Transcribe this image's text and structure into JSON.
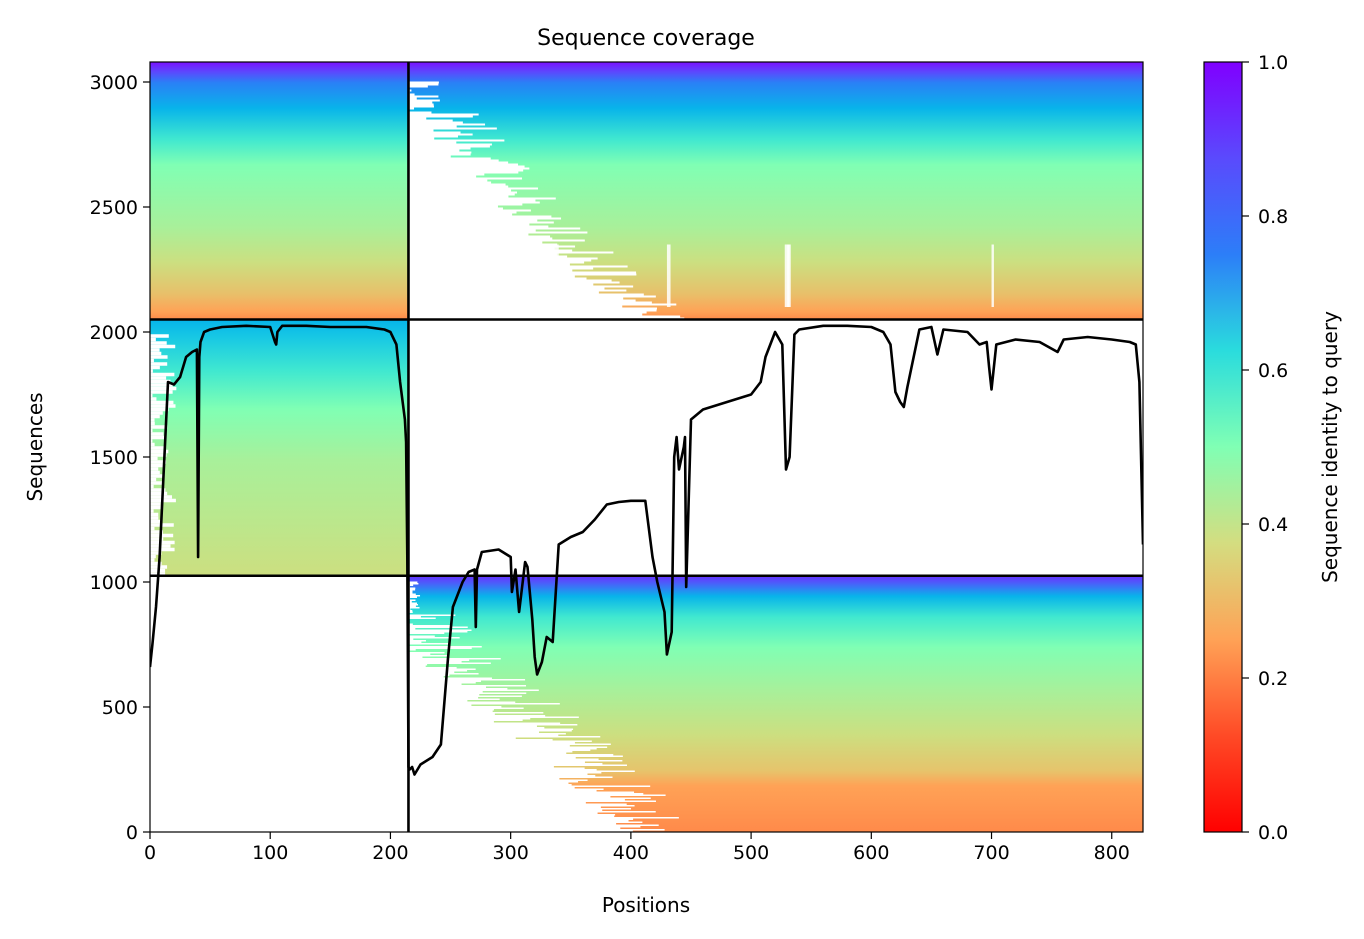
{
  "chart_data": {
    "type": "heatmap",
    "title": "Sequence coverage",
    "xlabel": "Positions",
    "ylabel": "Sequences",
    "xlim": [
      0,
      826
    ],
    "ylim": [
      0,
      3080
    ],
    "xticks": [
      0,
      100,
      200,
      300,
      400,
      500,
      600,
      700,
      800
    ],
    "yticks": [
      0,
      500,
      1000,
      1500,
      2000,
      2500,
      3000
    ],
    "colorbar": {
      "label": "Sequence identity to query",
      "range": [
        0.0,
        1.0
      ],
      "ticks": [
        "0.0",
        "0.2",
        "0.4",
        "0.6",
        "0.8",
        "1.0"
      ],
      "colormap": "rainbow"
    },
    "segment_boundaries_x": [
      215
    ],
    "block_boundaries_y": [
      1025,
      2050
    ],
    "blocks": [
      {
        "x_range": [
          0,
          215
        ],
        "y_range": [
          2050,
          3080
        ],
        "identity_bottom": 0.2,
        "identity_top": 1.0
      },
      {
        "x_range": [
          215,
          826
        ],
        "y_range": [
          2050,
          3080
        ],
        "identity_bottom": 0.2,
        "identity_top": 1.0
      },
      {
        "x_range": [
          0,
          215
        ],
        "y_range": [
          1025,
          2050
        ],
        "identity_bottom": 0.4,
        "identity_top": 0.75
      },
      {
        "x_range": [
          215,
          826
        ],
        "y_range": [
          0,
          1025
        ],
        "identity_bottom": 0.22,
        "identity_top": 1.0
      }
    ],
    "coverage_line": {
      "color": "#000000",
      "x": [
        0,
        2,
        5,
        8,
        12,
        15,
        20,
        25,
        30,
        35,
        39,
        40,
        41,
        42,
        45,
        50,
        60,
        80,
        100,
        104,
        105,
        106,
        110,
        130,
        150,
        180,
        195,
        200,
        205,
        208,
        212,
        213,
        214,
        215,
        216,
        218,
        220,
        225,
        235,
        242,
        248,
        252,
        260,
        265,
        270,
        271,
        272,
        276,
        290,
        300,
        301,
        304,
        307,
        312,
        314,
        318,
        320,
        322,
        326,
        330,
        335,
        340,
        350,
        360,
        370,
        380,
        390,
        400,
        412,
        418,
        422,
        428,
        430,
        434,
        436,
        438,
        440,
        444,
        445,
        446,
        450,
        460,
        480,
        500,
        508,
        512,
        520,
        526,
        529,
        532,
        536,
        540,
        560,
        580,
        600,
        610,
        616,
        620,
        624,
        627,
        630,
        640,
        650,
        655,
        660,
        680,
        690,
        696,
        698,
        700,
        704,
        720,
        740,
        755,
        760,
        780,
        800,
        815,
        820,
        823,
        826
      ],
      "y": [
        660,
        750,
        900,
        1100,
        1500,
        1800,
        1790,
        1820,
        1900,
        1920,
        1930,
        1100,
        1900,
        1960,
        2000,
        2010,
        2020,
        2025,
        2020,
        1960,
        1950,
        2000,
        2025,
        2025,
        2020,
        2020,
        2010,
        2000,
        1950,
        1800,
        1650,
        1560,
        1100,
        260,
        250,
        260,
        230,
        270,
        300,
        350,
        700,
        900,
        1000,
        1040,
        1050,
        820,
        1050,
        1120,
        1130,
        1100,
        960,
        1050,
        880,
        1080,
        1060,
        850,
        700,
        630,
        680,
        780,
        760,
        1150,
        1180,
        1200,
        1250,
        1310,
        1320,
        1325,
        1325,
        1100,
        1000,
        880,
        710,
        800,
        1500,
        1580,
        1450,
        1540,
        1580,
        980,
        1650,
        1690,
        1720,
        1750,
        1800,
        1900,
        2000,
        1950,
        1450,
        1500,
        1990,
        2010,
        2025,
        2025,
        2020,
        2000,
        1950,
        1760,
        1720,
        1700,
        1780,
        2010,
        2020,
        1910,
        2010,
        2000,
        1950,
        1960,
        1860,
        1770,
        1950,
        1970,
        1960,
        1920,
        1970,
        1980,
        1970,
        1960,
        1950,
        1800,
        1150
      ]
    }
  }
}
